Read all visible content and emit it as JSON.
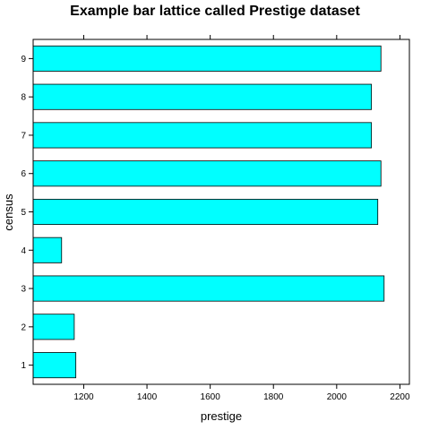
{
  "chart_data": {
    "type": "bar",
    "orientation": "horizontal",
    "title": "Example bar lattice called Prestige dataset",
    "xlabel": "prestige",
    "ylabel": "census",
    "categories": [
      "1",
      "2",
      "3",
      "4",
      "5",
      "6",
      "7",
      "8",
      "9"
    ],
    "values": [
      1175,
      1170,
      2150,
      1130,
      2130,
      2140,
      2110,
      2110,
      2140
    ],
    "xlim": [
      1040,
      2230
    ],
    "xticks": [
      1200,
      1400,
      1600,
      1800,
      2000,
      2200
    ],
    "xtick_labels": [
      "1200",
      "1400",
      "1600",
      "1800",
      "2000",
      "2200"
    ],
    "bar_color": "#00ffff",
    "bar_edge_color": "#000000",
    "grid": false,
    "legend": "none"
  }
}
